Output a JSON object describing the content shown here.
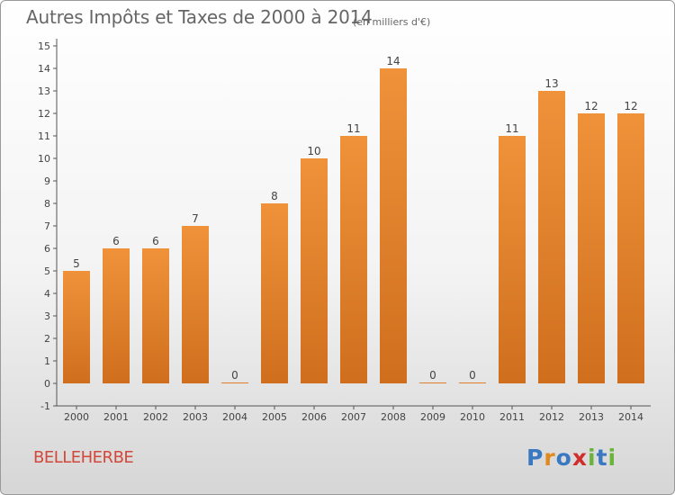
{
  "title": "Autres Impôts et Taxes de 2000 à 2014",
  "unit_note": "(en milliers d'€)",
  "commune": "BELLEHERBE",
  "logo": {
    "text": "Proxiti",
    "letters": [
      "P",
      "r",
      "o",
      "x",
      "i",
      "t",
      "i"
    ],
    "colors": [
      "#3a78c2",
      "#e08a1e",
      "#3a78c2",
      "#d22d2d",
      "#6ab43c",
      "#3a78c2",
      "#6ab43c"
    ]
  },
  "chart_data": {
    "type": "bar",
    "title": "Autres Impôts et Taxes de 2000 à 2014",
    "xlabel": "",
    "ylabel": "",
    "categories": [
      "2000",
      "2001",
      "2002",
      "2003",
      "2004",
      "2005",
      "2006",
      "2007",
      "2008",
      "2009",
      "2010",
      "2011",
      "2012",
      "2013",
      "2014"
    ],
    "values": [
      5,
      6,
      6,
      7,
      0,
      8,
      10,
      11,
      14,
      0,
      0,
      11,
      13,
      12,
      12
    ],
    "ylim": [
      -1,
      15
    ],
    "yticks": [
      -1,
      0,
      1,
      2,
      3,
      4,
      5,
      6,
      7,
      8,
      9,
      10,
      11,
      12,
      13,
      14,
      15
    ],
    "grid": false,
    "bar_color": "#f0923a",
    "bar_color_dark": "#cf6f1e"
  }
}
